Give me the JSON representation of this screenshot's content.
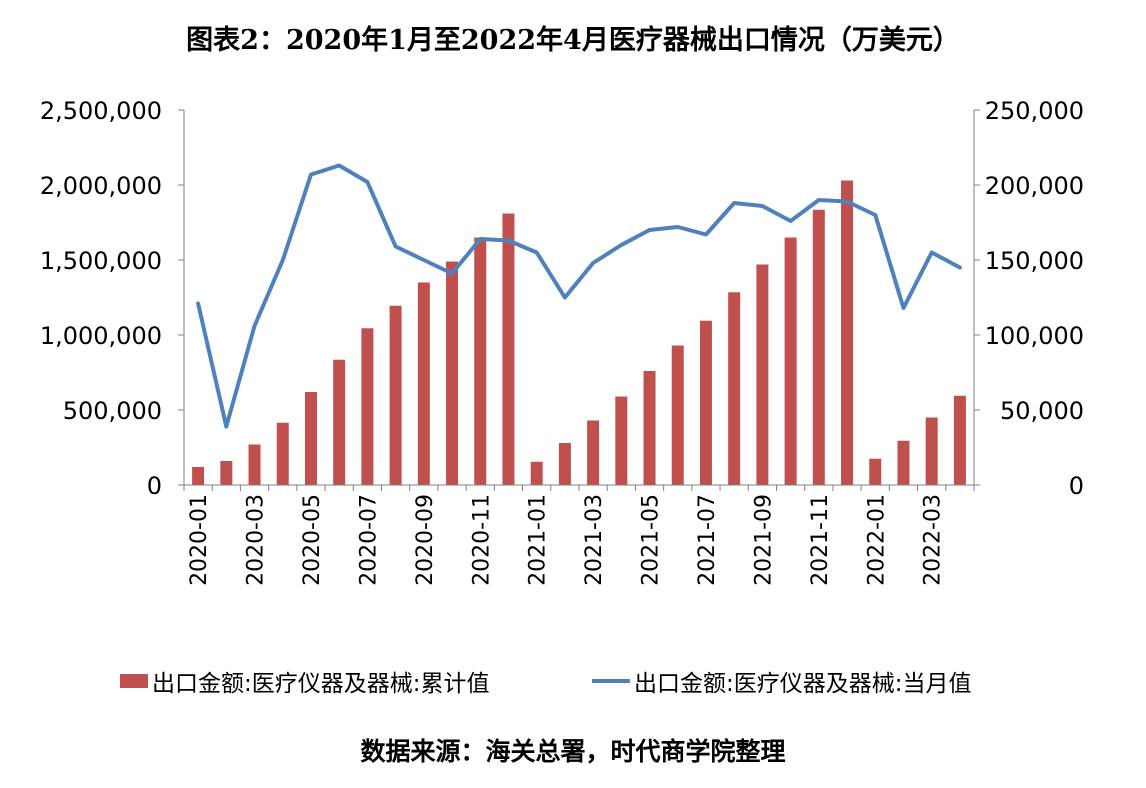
{
  "title": "图表2：2020年1月至2022年4月医疗器械出口情况（万美元）",
  "source": "数据来源：海关总署，时代商学院整理",
  "colors": {
    "bar": "#c0504d",
    "line": "#4f81bd",
    "axis": "#808080"
  },
  "chart_data": {
    "type": "bar",
    "title": "图表2：2020年1月至2022年4月医疗器械出口情况（万美元）",
    "categories": [
      "2020-01",
      "2020-02",
      "2020-03",
      "2020-04",
      "2020-05",
      "2020-06",
      "2020-07",
      "2020-08",
      "2020-09",
      "2020-10",
      "2020-11",
      "2020-12",
      "2021-01",
      "2021-02",
      "2021-03",
      "2021-04",
      "2021-05",
      "2021-06",
      "2021-07",
      "2021-08",
      "2021-09",
      "2021-10",
      "2021-11",
      "2021-12",
      "2022-01",
      "2022-02",
      "2022-03",
      "2022-04"
    ],
    "x_tick_labels": [
      "2020-01",
      "2020-03",
      "2020-05",
      "2020-07",
      "2020-09",
      "2020-11",
      "2021-01",
      "2021-03",
      "2021-05",
      "2021-07",
      "2021-09",
      "2021-11",
      "2022-01",
      "2022-03"
    ],
    "y_left": {
      "lim": [
        0,
        2500000
      ],
      "ticks": [
        "0",
        "500,000",
        "1,000,000",
        "1,500,000",
        "2,000,000",
        "2,500,000"
      ]
    },
    "y_right": {
      "lim": [
        0,
        250000
      ],
      "ticks": [
        "0",
        "50,000",
        "100,000",
        "150,000",
        "200,000",
        "250,000"
      ]
    },
    "grid": false,
    "legend_position": "bottom",
    "series": [
      {
        "name": "出口金额:医疗仪器及器械:累计值",
        "type": "bar",
        "axis": "left",
        "values": [
          120000,
          160000,
          270000,
          415000,
          620000,
          835000,
          1045000,
          1195000,
          1350000,
          1490000,
          1650000,
          1810000,
          155000,
          280000,
          430000,
          590000,
          760000,
          930000,
          1095000,
          1285000,
          1470000,
          1650000,
          1835000,
          2030000,
          175000,
          295000,
          450000,
          595000
        ]
      },
      {
        "name": "出口金额:医疗仪器及器械:当月值",
        "type": "line",
        "axis": "right",
        "values": [
          121000,
          39000,
          106000,
          150000,
          207000,
          213000,
          202000,
          159000,
          150000,
          141000,
          164000,
          163000,
          155000,
          125000,
          148000,
          160000,
          170000,
          172000,
          167000,
          188000,
          186000,
          176000,
          190000,
          189000,
          180000,
          118000,
          155000,
          145000
        ]
      }
    ]
  }
}
